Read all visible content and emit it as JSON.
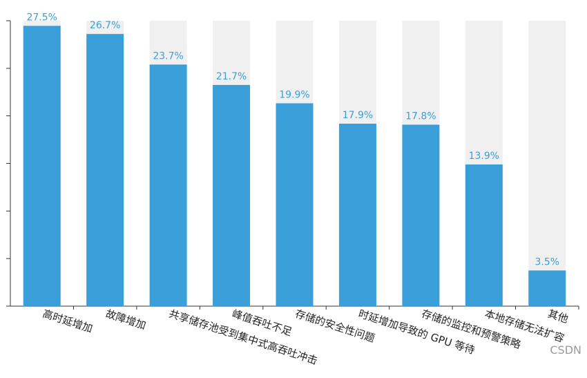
{
  "chart_data": {
    "type": "bar",
    "categories": [
      "高时延增加",
      "故障增加",
      "共享储存池受到集中式高吞吐冲击",
      "峰值吞吐不足",
      "存储的安全性问题",
      "时延增加导致的 GPU 等待",
      "存储的监控和预警策略",
      "本地存储无法扩容",
      "其他"
    ],
    "values": [
      27.5,
      26.7,
      23.7,
      21.7,
      19.9,
      17.9,
      17.8,
      13.9,
      3.5
    ],
    "value_labels": [
      "27.5%",
      "26.7%",
      "23.7%",
      "21.7%",
      "19.9%",
      "17.9%",
      "17.8%",
      "13.9%",
      "3.5%"
    ],
    "color": "#3a9fd8",
    "background_color": "#f0f0f0",
    "ylim": [
      0,
      28
    ],
    "yticks": [
      0,
      4.67,
      9.33,
      14,
      18.67,
      23.33,
      28
    ],
    "ytick_labels": false,
    "watermark": "CSDN"
  }
}
